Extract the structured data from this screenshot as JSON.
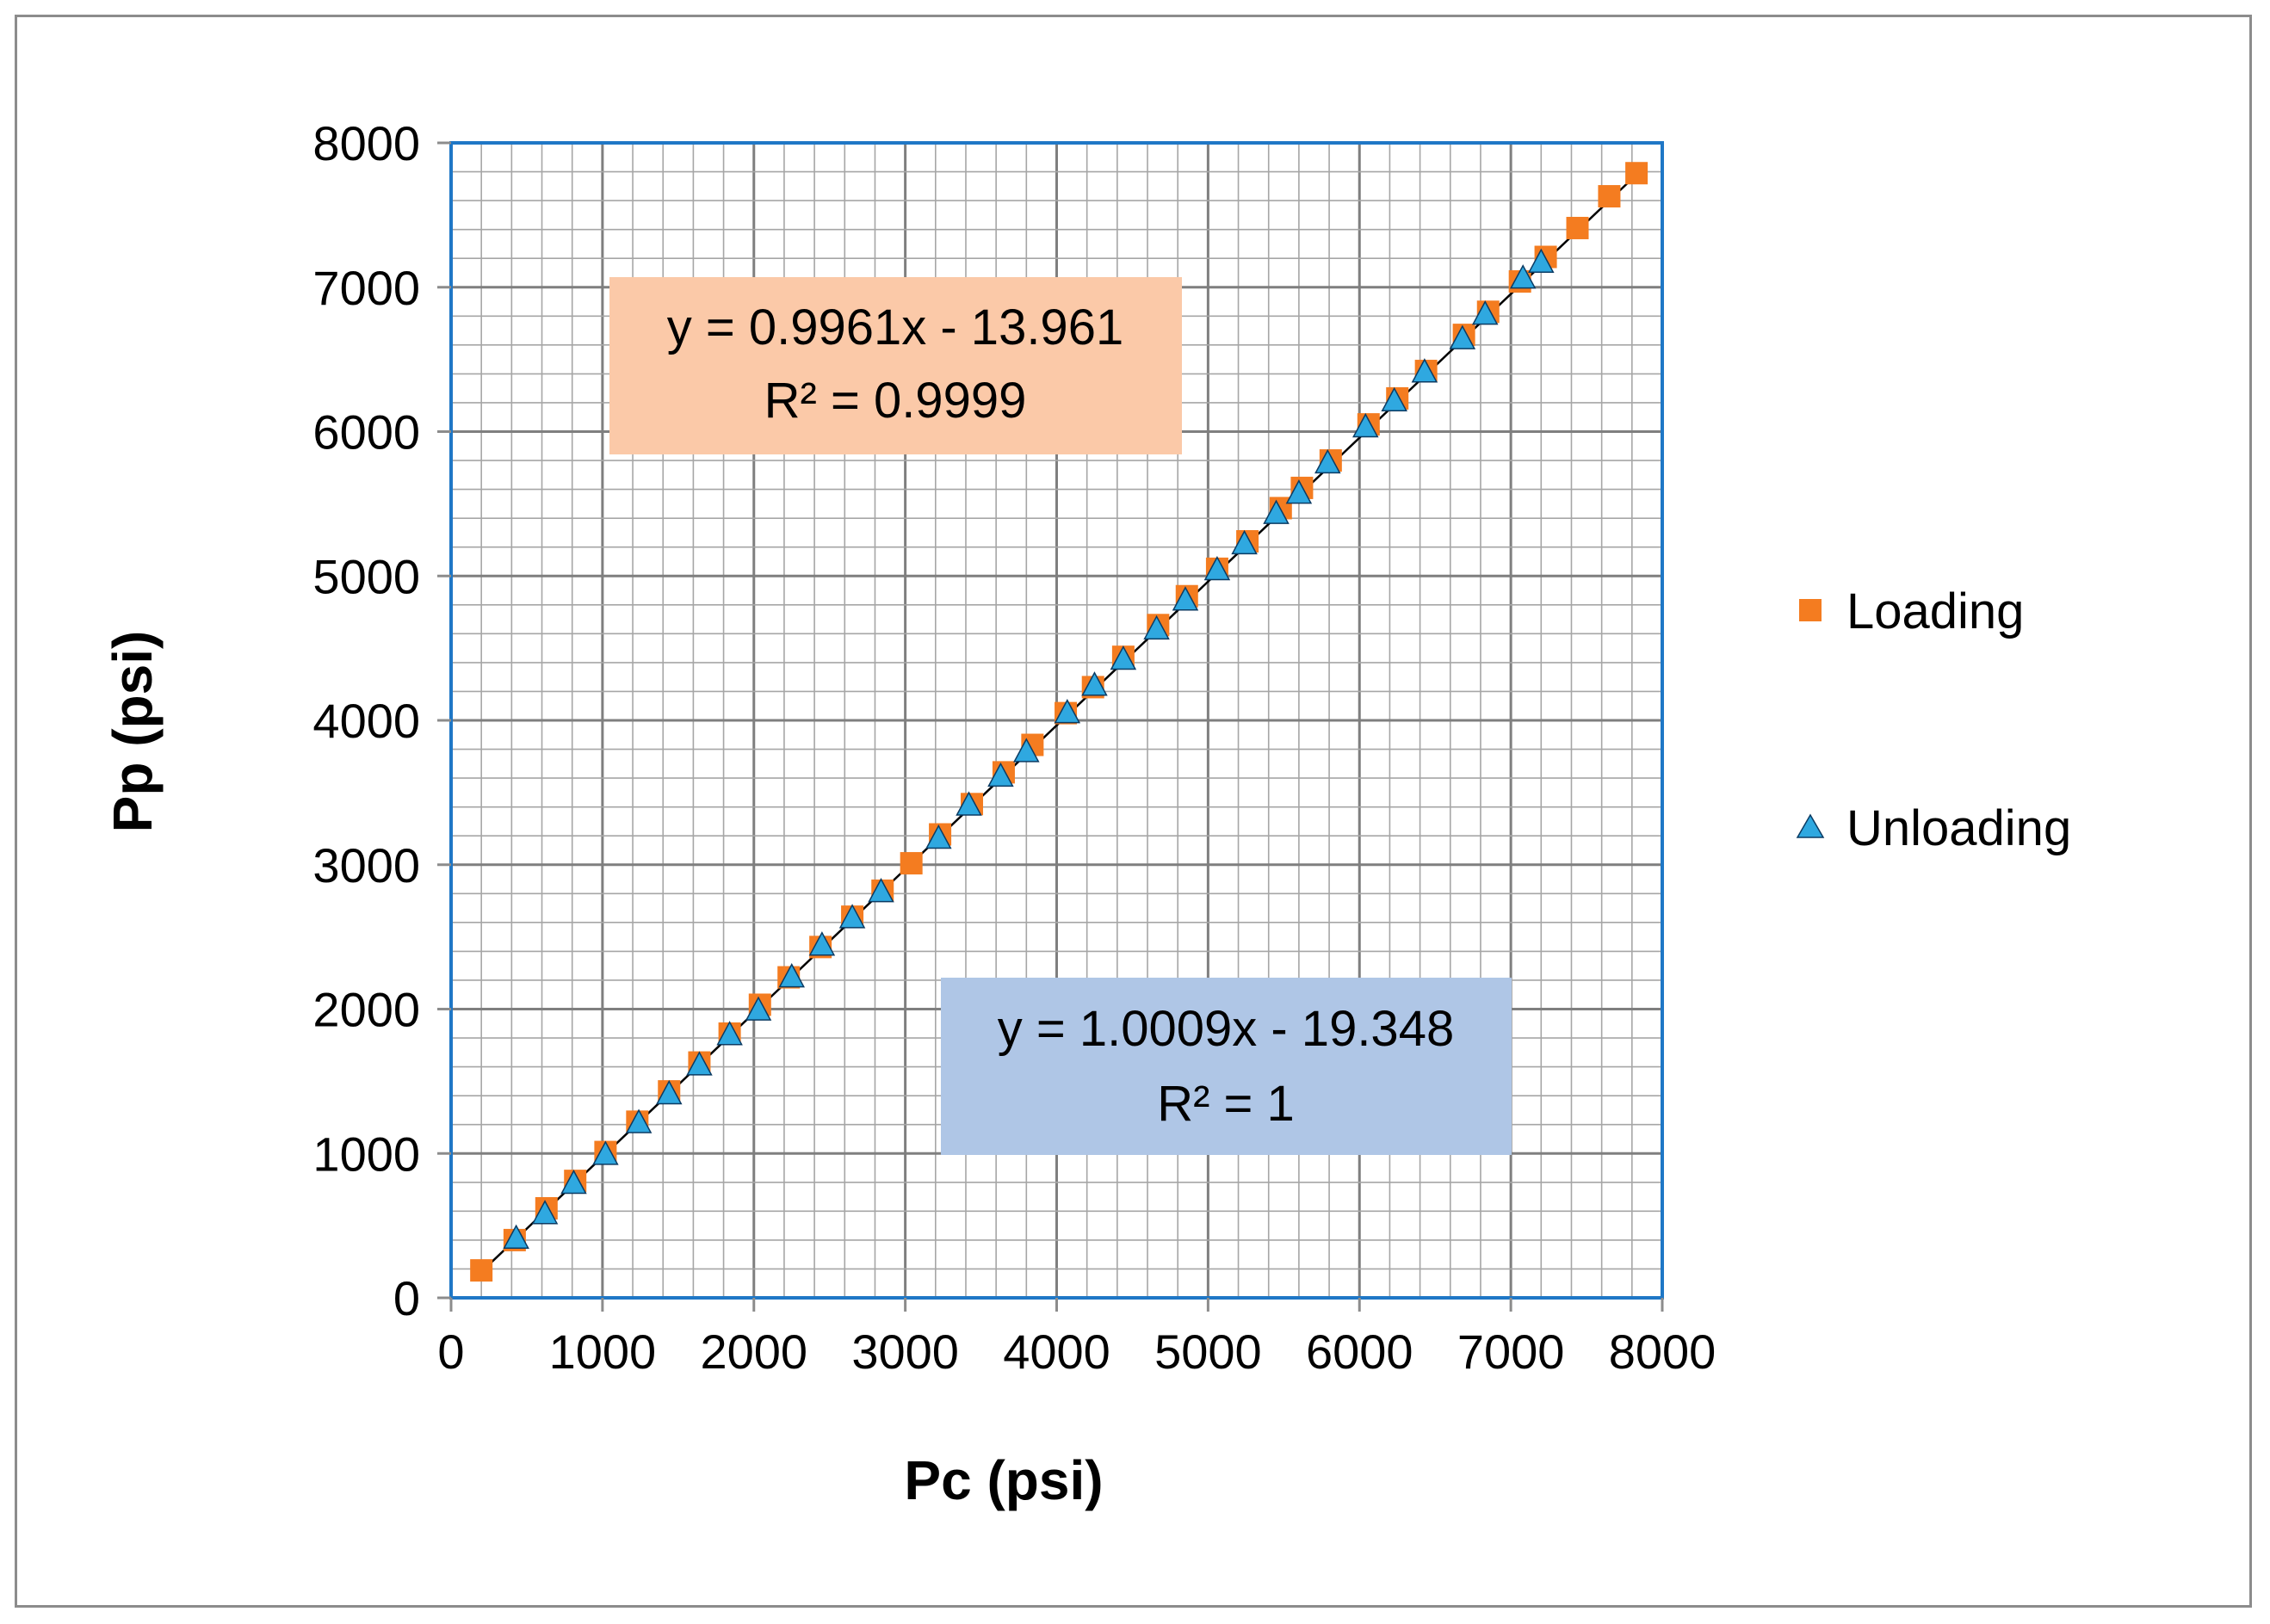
{
  "chart_data": {
    "type": "scatter",
    "title": "",
    "xlabel": "Pc (psi)",
    "ylabel": "Pp (psi)",
    "xlim": [
      0,
      8000
    ],
    "ylim": [
      0,
      8000
    ],
    "xticks": [
      0,
      1000,
      2000,
      3000,
      4000,
      5000,
      6000,
      7000,
      8000
    ],
    "yticks": [
      0,
      1000,
      2000,
      3000,
      4000,
      5000,
      6000,
      7000,
      8000
    ],
    "minor_step": 200,
    "grid": true,
    "legend_position": "right",
    "series": [
      {
        "name": "Loading",
        "marker": "square",
        "color": "#F47C20",
        "x": [
          200,
          420,
          630,
          820,
          1020,
          1230,
          1440,
          1640,
          1840,
          2040,
          2230,
          2440,
          2650,
          2850,
          3040,
          3230,
          3440,
          3650,
          3840,
          4060,
          4240,
          4440,
          4670,
          4860,
          5060,
          5260,
          5480,
          5620,
          5810,
          6060,
          6250,
          6440,
          6690,
          6850,
          7060,
          7230,
          7440,
          7650,
          7830
        ],
        "y": [
          190,
          400,
          620,
          810,
          1010,
          1220,
          1430,
          1630,
          1830,
          2030,
          2220,
          2430,
          2640,
          2820,
          3010,
          3210,
          3420,
          3640,
          3830,
          4050,
          4230,
          4440,
          4660,
          4860,
          5050,
          5240,
          5470,
          5610,
          5800,
          6050,
          6230,
          6420,
          6670,
          6830,
          7040,
          7210,
          7410,
          7630,
          7790
        ]
      },
      {
        "name": "Unloading",
        "marker": "triangle",
        "color": "#2FA8E0",
        "x": [
          430,
          620,
          810,
          1020,
          1240,
          1440,
          1640,
          1840,
          2030,
          2250,
          2450,
          2650,
          2840,
          3220,
          3420,
          3630,
          3800,
          4070,
          4250,
          4440,
          4660,
          4850,
          5060,
          5240,
          5450,
          5600,
          5790,
          6040,
          6230,
          6430,
          6680,
          6830,
          7080,
          7200
        ],
        "y": [
          410,
          580,
          790,
          990,
          1210,
          1410,
          1610,
          1820,
          1990,
          2220,
          2440,
          2630,
          2810,
          3180,
          3410,
          3610,
          3780,
          4050,
          4240,
          4420,
          4630,
          4830,
          5040,
          5220,
          5430,
          5570,
          5780,
          6030,
          6210,
          6410,
          6640,
          6810,
          7060,
          7170
        ]
      }
    ],
    "trendline": {
      "from": [
        200,
        180
      ],
      "to": [
        7830,
        7780
      ],
      "color": "#000000"
    },
    "annotations": [
      {
        "line1": "y = 0.9961x - 13.961",
        "line2": "R² = 0.9999",
        "bg": "#FBC9A8"
      },
      {
        "line1": "y = 1.0009x - 19.348",
        "line2": "R² = 1",
        "bg": "#AFC6E6"
      }
    ],
    "colors": {
      "plot_border": "#1F77C6",
      "grid": "#A6A6A6"
    }
  }
}
